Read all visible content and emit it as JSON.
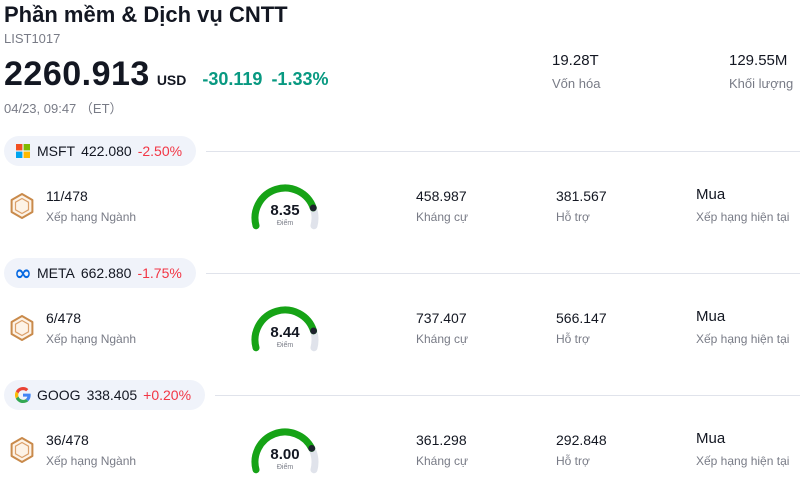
{
  "palette": {
    "green": "#089981",
    "red": "#f23645",
    "cyan": "#00bcd4",
    "muted": "#787b86",
    "text": "#131722",
    "badge-bg": "#f0f3fa",
    "divider": "#e0e3eb",
    "gauge-green": "#16a316",
    "gauge-track": "#e0e3eb",
    "gauge-dot": "#1e222d"
  },
  "header": {
    "title": "Phần mềm & Dịch vụ CNTT",
    "list_id": "LIST1017",
    "price": "2260.913",
    "currency": "USD",
    "change_abs": "-30.119",
    "change_pct": "-1.33%",
    "timestamp": "04/23, 09:47 （ET）",
    "market_cap": {
      "value": "19.28T",
      "label": "Vốn hóa"
    },
    "volume": {
      "value": "129.55M",
      "label": "Khối lượng"
    }
  },
  "rows": [
    {
      "symbol": "MSFT",
      "price": "422.080",
      "change": "-2.50%",
      "rank": "11/478",
      "rank_label": "Xếp hạng Ngành",
      "score": "8.35",
      "score_max": 10,
      "score_label": "Điểm",
      "resistance": "458.987",
      "resistance_label": "Kháng cự",
      "support": "381.567",
      "support_label": "Hỗ trợ",
      "rating": "Mua",
      "rating_label": "Xếp hạng hiện tại"
    },
    {
      "symbol": "META",
      "price": "662.880",
      "change": "-1.75%",
      "rank": "6/478",
      "rank_label": "Xếp hạng Ngành",
      "score": "8.44",
      "score_max": 10,
      "score_label": "Điểm",
      "resistance": "737.407",
      "resistance_label": "Kháng cự",
      "support": "566.147",
      "support_label": "Hỗ trợ",
      "rating": "Mua",
      "rating_label": "Xếp hạng hiện tại"
    },
    {
      "symbol": "GOOG",
      "price": "338.405",
      "change": "+0.20%",
      "rank": "36/478",
      "rank_label": "Xếp hạng Ngành",
      "score": "8.00",
      "score_max": 10,
      "score_label": "Điểm",
      "resistance": "361.298",
      "resistance_label": "Kháng cự",
      "support": "292.848",
      "support_label": "Hỗ trợ",
      "rating": "Mua",
      "rating_label": "Xếp hạng hiện tại"
    }
  ]
}
